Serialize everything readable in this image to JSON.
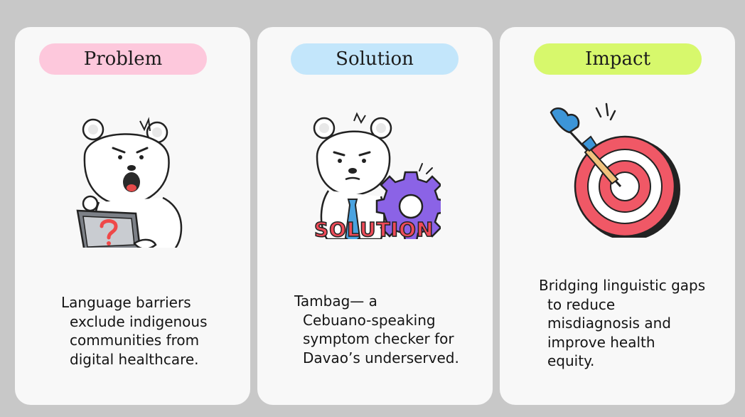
{
  "colors": {
    "background": "#c8c8c8",
    "card": "#f8f8f8",
    "problem_pill": "#fdc8dc",
    "solution_pill": "#c3e6fb",
    "impact_pill": "#d7f86c",
    "solution_word": "#ee4b58",
    "gear": "#8b63e6",
    "target_red": "#f05866",
    "dart_blue": "#3c95d8"
  },
  "cards": [
    {
      "title": "Problem",
      "illustration": "bear-with-laptop-question-icon",
      "text_lines": [
        "Language barriers",
        "exclude indigenous",
        "communities from",
        "digital healthcare."
      ]
    },
    {
      "title": "Solution",
      "illustration": "bear-with-gear-solution-icon",
      "illustration_text": "SOLUTION",
      "text_lines": [
        "Tambag— a",
        "Cebuano-speaking",
        "symptom checker for",
        "Davao’s underserved."
      ]
    },
    {
      "title": "Impact",
      "illustration": "dart-target-icon",
      "text_lines": [
        "Bridging linguistic gaps",
        "to reduce",
        "misdiagnosis and",
        "improve health",
        "equity."
      ]
    }
  ]
}
